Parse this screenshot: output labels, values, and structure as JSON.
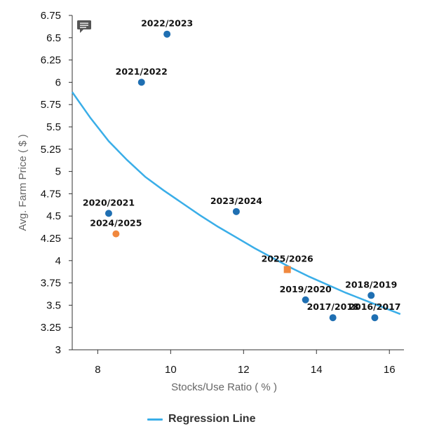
{
  "chart_data": {
    "type": "scatter",
    "title": "",
    "xlabel": "Stocks/Use Ratio ( % )",
    "ylabel": "Avg. Farm Price ( $ )",
    "xlim": [
      7.3,
      16.4
    ],
    "ylim": [
      3,
      6.75
    ],
    "x_ticks": [
      "8",
      "10",
      "12",
      "14",
      "16"
    ],
    "y_ticks": [
      "3",
      "3.25",
      "3.5",
      "3.75",
      "4",
      "4.25",
      "4.5",
      "4.75",
      "5",
      "5.25",
      "5.5",
      "5.75",
      "6",
      "6.25",
      "6.5",
      "6.75"
    ],
    "grid": false,
    "legend": "bottom-center",
    "colors": {
      "historical": "#1f6fb2",
      "projection": "#f0883e",
      "regression": "#3aaee8"
    },
    "points": [
      {
        "label": "2016/2017",
        "x": 15.6,
        "y": 3.36,
        "marker": "circle",
        "group": "historical"
      },
      {
        "label": "2017/2018",
        "x": 14.45,
        "y": 3.36,
        "marker": "circle",
        "group": "historical"
      },
      {
        "label": "2018/2019",
        "x": 15.5,
        "y": 3.61,
        "marker": "circle",
        "group": "historical"
      },
      {
        "label": "2019/2020",
        "x": 13.7,
        "y": 3.56,
        "marker": "circle",
        "group": "historical"
      },
      {
        "label": "2020/2021",
        "x": 8.3,
        "y": 4.53,
        "marker": "circle",
        "group": "historical"
      },
      {
        "label": "2021/2022",
        "x": 9.2,
        "y": 6.0,
        "marker": "circle",
        "group": "historical"
      },
      {
        "label": "2022/2023",
        "x": 9.9,
        "y": 6.54,
        "marker": "circle",
        "group": "historical"
      },
      {
        "label": "2023/2024",
        "x": 11.8,
        "y": 4.55,
        "marker": "circle",
        "group": "historical"
      },
      {
        "label": "2024/2025",
        "x": 8.5,
        "y": 4.3,
        "marker": "circle",
        "group": "projection"
      },
      {
        "label": "2025/2026",
        "x": 13.2,
        "y": 3.9,
        "marker": "square",
        "group": "projection"
      }
    ],
    "series": [
      {
        "name": "Regression Line",
        "type": "line",
        "x": [
          7.3,
          7.8,
          8.3,
          8.8,
          9.3,
          9.8,
          10.3,
          10.8,
          11.3,
          11.8,
          12.3,
          12.8,
          13.3,
          13.8,
          14.3,
          14.8,
          15.3,
          15.8,
          16.3
        ],
        "y": [
          5.89,
          5.6,
          5.34,
          5.13,
          4.94,
          4.79,
          4.65,
          4.51,
          4.38,
          4.26,
          4.14,
          4.03,
          3.92,
          3.82,
          3.73,
          3.64,
          3.56,
          3.48,
          3.4
        ]
      }
    ]
  },
  "legend": {
    "label": "Regression Line"
  },
  "toolbar": {
    "menu_icon": "comment-menu-icon"
  }
}
